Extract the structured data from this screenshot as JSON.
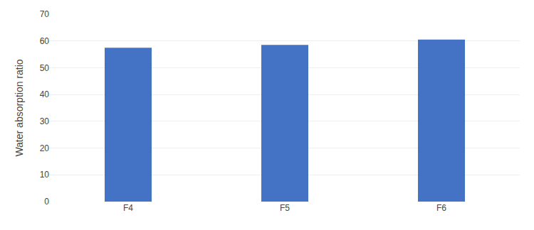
{
  "chart_data": {
    "type": "bar",
    "categories": [
      "F4",
      "F5",
      "F6"
    ],
    "values": [
      57.5,
      58.5,
      60.5
    ],
    "color": "#4472C4",
    "ylabel": "Water absorption ratio",
    "ylim": [
      0,
      70
    ],
    "yticks": [
      0,
      10,
      20,
      30,
      40,
      50,
      60,
      70
    ],
    "grid": true
  }
}
